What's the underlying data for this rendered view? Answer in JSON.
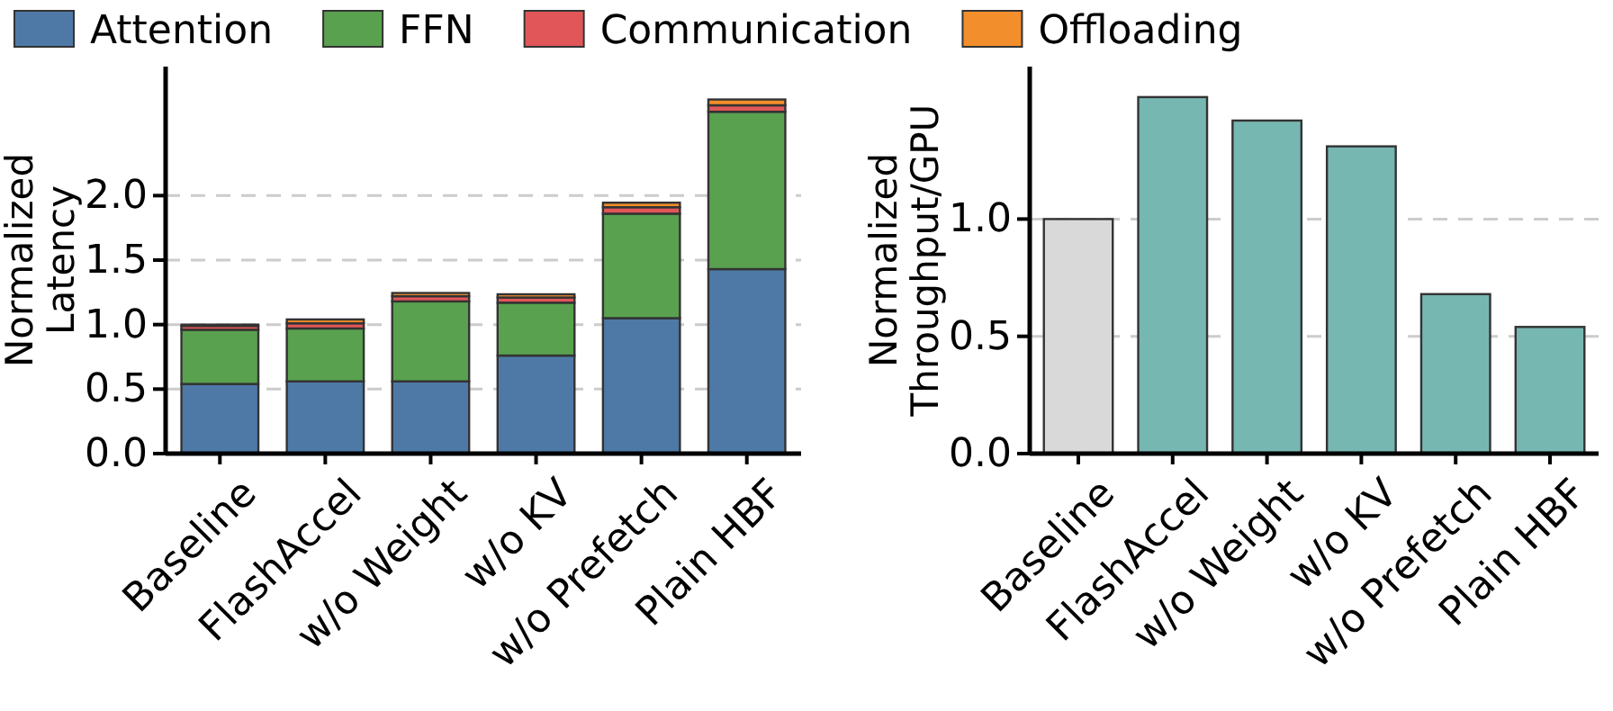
{
  "chart_data": [
    {
      "type": "bar",
      "stacked": true,
      "ylabel": "Normalized Latency",
      "categories": [
        "Baseline",
        "FlashAccel",
        "w/o Weight",
        "w/o KV",
        "w/o Prefetch",
        "Plain HBF"
      ],
      "series": [
        {
          "name": "Attention",
          "color": "#4e79a7",
          "values": [
            0.54,
            0.56,
            0.56,
            0.76,
            1.05,
            1.43
          ]
        },
        {
          "name": "FFN",
          "color": "#59a14f",
          "values": [
            0.42,
            0.41,
            0.62,
            0.41,
            0.81,
            1.22
          ]
        },
        {
          "name": "Communication",
          "color": "#e15759",
          "values": [
            0.03,
            0.04,
            0.04,
            0.04,
            0.05,
            0.05
          ]
        },
        {
          "name": "Offloading",
          "color": "#f28e2b",
          "values": [
            0.01,
            0.03,
            0.025,
            0.025,
            0.035,
            0.045
          ]
        }
      ],
      "ylim": [
        0,
        3.0
      ],
      "yticks": [
        {
          "value": 0,
          "label": "0.0"
        },
        {
          "value": 0.5,
          "label": "0.5"
        },
        {
          "value": 1,
          "label": "1.0"
        },
        {
          "value": 1.5,
          "label": "1.5"
        },
        {
          "value": 2,
          "label": "2.0"
        }
      ],
      "grid": "y",
      "legend": "top"
    },
    {
      "type": "bar",
      "ylabel": "Normalized Throughput/GPU",
      "categories": [
        "Baseline",
        "FlashAccel",
        "w/o Weight",
        "w/o KV",
        "w/o Prefetch",
        "Plain HBF"
      ],
      "values": [
        1.0,
        1.52,
        1.42,
        1.31,
        0.68,
        0.54
      ],
      "colors": [
        "#d9d9d9",
        "#76b7b2",
        "#76b7b2",
        "#76b7b2",
        "#76b7b2",
        "#76b7b2"
      ],
      "ylim": [
        0,
        1.65
      ],
      "yticks": [
        {
          "value": 0,
          "label": "0.0"
        },
        {
          "value": 0.5,
          "label": "0.5"
        },
        {
          "value": 1,
          "label": "1.0"
        }
      ],
      "grid": "y"
    }
  ]
}
